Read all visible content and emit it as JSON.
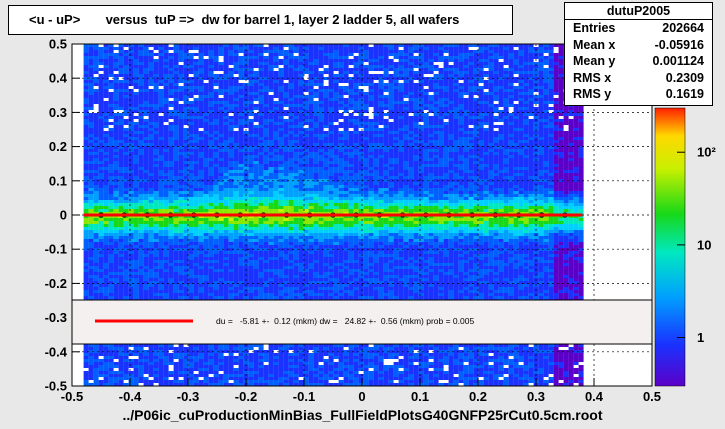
{
  "title": "<u - uP>       versus  tuP =>  dw for barrel 1, layer 2 ladder 5, all wafers",
  "stats": {
    "name": "dutuP2005",
    "rows": [
      {
        "label": "Entries",
        "value": "202664"
      },
      {
        "label": "Mean x",
        "value": "-0.05916"
      },
      {
        "label": "Mean y",
        "value": "0.001124"
      },
      {
        "label": "RMS x",
        "value": "0.2309"
      },
      {
        "label": "RMS y",
        "value": "0.1619"
      }
    ]
  },
  "fit_legend": {
    "text": "du =   -5.81 +-  0.12 (mkm) dw =   24.82 +-  0.56 (mkm) prob = 0.005",
    "line_color": "#ff0000"
  },
  "footer": "../P06ic_cuProductionMinBias_FullFieldPlotsG40GNFP25rCut0.5cm.root",
  "chart_data": {
    "type": "heatmap",
    "xlim": [
      -0.5,
      0.5
    ],
    "ylim": [
      -0.5,
      0.5
    ],
    "x_ticks": [
      "-0.5",
      "-0.4",
      "-0.3",
      "-0.2",
      "-0.1",
      "0",
      "0.1",
      "0.2",
      "0.3",
      "0.4",
      "0.5"
    ],
    "y_ticks": [
      "-0.5",
      "-0.4",
      "-0.3",
      "-0.2",
      "-0.1",
      "0",
      "0.1",
      "0.2",
      "0.3",
      "0.4",
      "0.5"
    ],
    "x_tick_values": [
      -0.5,
      -0.4,
      -0.3,
      -0.2,
      -0.1,
      0,
      0.1,
      0.2,
      0.3,
      0.4,
      0.5
    ],
    "y_tick_values": [
      -0.5,
      -0.4,
      -0.3,
      -0.2,
      -0.1,
      0,
      0.1,
      0.2,
      0.3,
      0.4,
      0.5
    ],
    "occupied_x_range": [
      -0.48,
      0.38
    ],
    "core_band_y": [
      -0.03,
      0.03
    ],
    "fit_line": {
      "x": [
        -0.48,
        0.38
      ],
      "y": [
        0.0,
        0.0
      ],
      "color": "#ff0000"
    },
    "profile_x": [
      -0.45,
      -0.41,
      -0.37,
      -0.33,
      -0.29,
      -0.25,
      -0.21,
      -0.17,
      -0.13,
      -0.09,
      -0.05,
      -0.01,
      0.03,
      0.07,
      0.11,
      0.15,
      0.19,
      0.23,
      0.27,
      0.31,
      0.35
    ],
    "profile_y": [
      0.0,
      0.0,
      0.0,
      0.0,
      0.0,
      0.0,
      0.0,
      0.0,
      0.0,
      0.0,
      0.0,
      0.0,
      0.0,
      0.0,
      0.0,
      0.0,
      0.0,
      0.0,
      0.0,
      0.0,
      0.0
    ],
    "palette_labels": [
      "10²",
      "10",
      "1"
    ],
    "palette_label_values": [
      100,
      10,
      1
    ],
    "palette_range": [
      0.3,
      300
    ],
    "grid": true
  }
}
